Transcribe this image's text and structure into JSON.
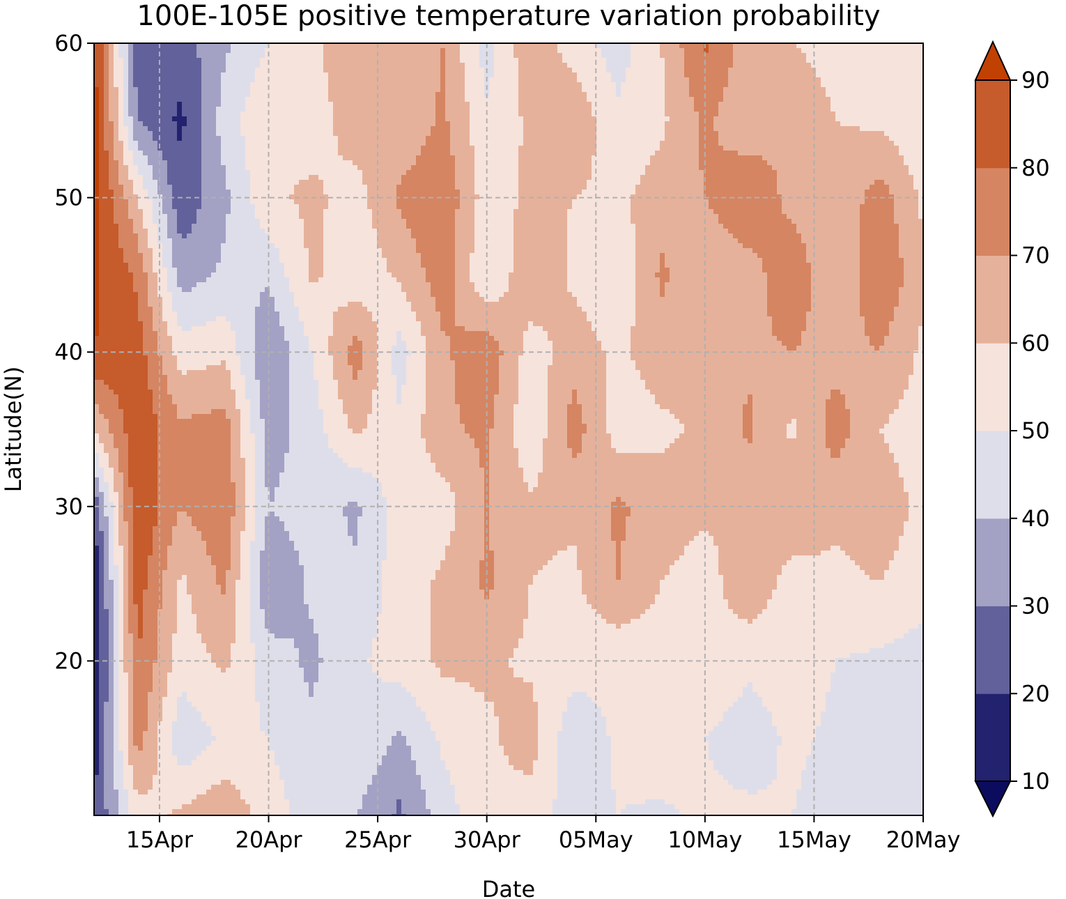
{
  "chart_data": {
    "type": "heatmap",
    "subtype": "filled-contour",
    "title": "100E-105E positive temperature variation probability",
    "xlabel": "Date",
    "ylabel": "Latitude(N)",
    "x_tick_labels": [
      "15Apr",
      "20Apr",
      "25Apr",
      "30Apr",
      "05May",
      "10May",
      "15May",
      "20May"
    ],
    "x_tick_day_index": [
      3,
      8,
      13,
      18,
      23,
      28,
      33,
      38
    ],
    "x_range_day_index": [
      0,
      38
    ],
    "x_start_date": "2022-04-12",
    "y_tick_labels": [
      "20",
      "30",
      "40",
      "50",
      "60"
    ],
    "y_ticks": [
      20,
      30,
      40,
      50,
      60
    ],
    "ylim": [
      10,
      60
    ],
    "grid": true,
    "colorbar": {
      "levels": [
        10,
        20,
        30,
        40,
        50,
        60,
        70,
        80,
        90
      ],
      "tick_labels": [
        "10",
        "20",
        "30",
        "40",
        "50",
        "60",
        "70",
        "80",
        "90"
      ],
      "extend": "both",
      "colors": [
        "#0c0c5e",
        "#22226e",
        "#62619b",
        "#a3a1c4",
        "#dedeea",
        "#f6e3dc",
        "#e6b19a",
        "#d58562",
        "#c65b2c",
        "#c14102"
      ]
    },
    "field_description": "Probability (%) of positive temperature variation as a function of date (x) and latitude (y, 10-60N) averaged over 100E-105E.",
    "grid_x_days": [
      0,
      2,
      4,
      6,
      8,
      10,
      12,
      14,
      16,
      18,
      20,
      22,
      24,
      26,
      28,
      30,
      32,
      34,
      36,
      38
    ],
    "grid_y_lat": [
      60,
      55,
      50,
      45,
      40,
      35,
      30,
      25,
      20,
      15,
      10
    ],
    "values": [
      [
        92,
        22,
        25,
        38,
        50,
        58,
        68,
        60,
        70,
        45,
        68,
        55,
        45,
        60,
        82,
        65,
        60,
        55,
        60,
        55
      ],
      [
        95,
        30,
        18,
        45,
        60,
        55,
        65,
        62,
        72,
        52,
        62,
        68,
        52,
        58,
        72,
        62,
        70,
        60,
        58,
        52
      ],
      [
        95,
        60,
        22,
        38,
        58,
        62,
        56,
        72,
        78,
        55,
        62,
        60,
        58,
        65,
        70,
        80,
        66,
        62,
        75,
        58
      ],
      [
        92,
        78,
        35,
        42,
        42,
        62,
        52,
        62,
        76,
        50,
        68,
        58,
        52,
        72,
        60,
        65,
        78,
        60,
        80,
        62
      ],
      [
        90,
        85,
        55,
        58,
        30,
        50,
        75,
        45,
        68,
        78,
        55,
        65,
        58,
        65,
        60,
        68,
        70,
        66,
        70,
        58
      ],
      [
        60,
        88,
        72,
        75,
        35,
        45,
        62,
        52,
        68,
        72,
        52,
        75,
        55,
        58,
        62,
        72,
        58,
        75,
        60,
        55
      ],
      [
        22,
        90,
        70,
        78,
        40,
        45,
        38,
        55,
        55,
        70,
        62,
        62,
        72,
        65,
        62,
        62,
        70,
        62,
        65,
        58
      ],
      [
        10,
        85,
        58,
        72,
        30,
        42,
        42,
        55,
        62,
        72,
        60,
        58,
        70,
        60,
        55,
        68,
        55,
        58,
        60,
        55
      ],
      [
        8,
        80,
        55,
        62,
        45,
        38,
        48,
        55,
        62,
        62,
        58,
        55,
        52,
        55,
        58,
        52,
        55,
        50,
        48,
        45
      ],
      [
        15,
        75,
        42,
        52,
        50,
        42,
        50,
        38,
        52,
        58,
        65,
        42,
        52,
        58,
        50,
        45,
        52,
        48,
        42,
        45
      ],
      [
        20,
        55,
        62,
        68,
        55,
        45,
        40,
        28,
        45,
        58,
        55,
        45,
        50,
        48,
        52,
        52,
        50,
        45,
        45,
        42
      ]
    ]
  }
}
